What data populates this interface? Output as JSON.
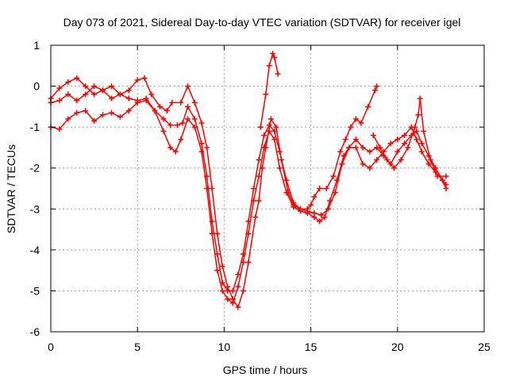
{
  "chart_data": {
    "type": "scatter",
    "title": "Day 073 of 2021, Sidereal Day-to-day VTEC variation (SDTVAR) for receiver igel",
    "xlabel": "GPS time / hours",
    "ylabel": "SDTVAR / TECUs",
    "xlim": [
      0,
      25
    ],
    "ylim": [
      -6,
      1
    ],
    "xticks": [
      "0",
      "5",
      "10",
      "15",
      "20",
      "25"
    ],
    "yticks": [
      "1",
      "0",
      "-1",
      "-2",
      "-3",
      "-4",
      "-5",
      "-6"
    ],
    "grid": true,
    "marker": "plus",
    "color": "#ff0000",
    "series": [
      {
        "name": "track-1",
        "points": [
          [
            0,
            -0.3
          ],
          [
            0.5,
            -0.05
          ],
          [
            1.0,
            0.1
          ],
          [
            1.5,
            0.2
          ],
          [
            2.0,
            0.0
          ],
          [
            2.5,
            -0.2
          ],
          [
            3.0,
            -0.1
          ],
          [
            3.5,
            -0.3
          ],
          [
            4.0,
            -0.2
          ],
          [
            4.5,
            -0.1
          ],
          [
            5.0,
            0.15
          ],
          [
            5.4,
            0.2
          ],
          [
            5.8,
            -0.2
          ],
          [
            6.3,
            -0.5
          ],
          [
            6.7,
            -0.6
          ],
          [
            7.0,
            -0.4
          ],
          [
            7.5,
            -0.4
          ],
          [
            7.9,
            0.0
          ],
          [
            8.3,
            -0.4
          ],
          [
            8.7,
            -0.9
          ],
          [
            9.0,
            -1.5
          ],
          [
            9.3,
            -2.5
          ],
          [
            9.6,
            -3.6
          ],
          [
            9.9,
            -4.4
          ],
          [
            10.2,
            -4.9
          ],
          [
            10.5,
            -5.2
          ],
          [
            10.8,
            -5.4
          ],
          [
            11.1,
            -5.0
          ],
          [
            11.4,
            -4.3
          ],
          [
            11.8,
            -3.2
          ],
          [
            12.0,
            -2.8
          ],
          [
            12.2,
            -2.0
          ],
          [
            12.4,
            -1.5
          ],
          [
            12.7,
            -0.8
          ],
          [
            13.0,
            -1.0
          ],
          [
            13.3,
            -1.8
          ],
          [
            13.7,
            -2.6
          ],
          [
            14.0,
            -2.9
          ],
          [
            14.4,
            -3.0
          ],
          [
            14.8,
            -3.0
          ],
          [
            15.0,
            -2.9
          ],
          [
            15.2,
            -2.7
          ],
          [
            15.5,
            -2.5
          ],
          [
            15.9,
            -2.5
          ],
          [
            16.3,
            -2.2
          ],
          [
            16.7,
            -1.6
          ],
          [
            17.0,
            -1.3
          ],
          [
            17.3,
            -1.0
          ],
          [
            17.6,
            -0.8
          ],
          [
            17.9,
            -0.9
          ],
          [
            18.3,
            -0.5
          ],
          [
            18.7,
            -0.1
          ],
          [
            18.8,
            0.0
          ]
        ]
      },
      {
        "name": "track-2",
        "points": [
          [
            0,
            -0.4
          ],
          [
            0.5,
            -0.35
          ],
          [
            1.0,
            -0.2
          ],
          [
            1.5,
            -0.35
          ],
          [
            2.0,
            -0.2
          ],
          [
            2.5,
            0.0
          ],
          [
            3.0,
            -0.1
          ],
          [
            3.5,
            0.0
          ],
          [
            4.0,
            -0.2
          ],
          [
            4.5,
            -0.3
          ],
          [
            5.0,
            -0.35
          ],
          [
            5.5,
            -0.3
          ],
          [
            6.0,
            -0.6
          ],
          [
            6.5,
            -1.1
          ],
          [
            6.9,
            -1.5
          ],
          [
            7.2,
            -1.6
          ],
          [
            7.5,
            -1.3
          ],
          [
            7.9,
            -0.8
          ],
          [
            8.3,
            -1.0
          ],
          [
            8.7,
            -1.6
          ],
          [
            9.0,
            -2.5
          ],
          [
            9.3,
            -3.6
          ],
          [
            9.6,
            -4.5
          ],
          [
            9.9,
            -5.0
          ],
          [
            10.2,
            -5.2
          ],
          [
            10.5,
            -5.3
          ],
          [
            10.8,
            -4.9
          ],
          [
            11.1,
            -4.3
          ],
          [
            11.4,
            -3.6
          ],
          [
            11.7,
            -2.8
          ],
          [
            12.0,
            -2.2
          ],
          [
            12.3,
            -1.5
          ],
          [
            12.6,
            -1.1
          ],
          [
            12.9,
            -1.3
          ],
          [
            13.2,
            -2.0
          ],
          [
            13.6,
            -2.6
          ],
          [
            14.0,
            -2.95
          ],
          [
            14.4,
            -3.05
          ],
          [
            14.8,
            -3.1
          ],
          [
            15.2,
            -3.2
          ],
          [
            15.5,
            -3.3
          ],
          [
            15.8,
            -3.2
          ],
          [
            16.1,
            -2.8
          ],
          [
            16.5,
            -2.3
          ],
          [
            16.9,
            -1.7
          ],
          [
            17.2,
            -1.5
          ],
          [
            17.6,
            -1.5
          ],
          [
            18.0,
            -1.9
          ],
          [
            18.4,
            -2.0
          ],
          [
            18.8,
            -1.8
          ],
          [
            19.2,
            -1.6
          ],
          [
            19.6,
            -1.4
          ],
          [
            20.0,
            -1.3
          ],
          [
            20.4,
            -1.2
          ],
          [
            20.8,
            -1.0
          ],
          [
            21.1,
            -1.3
          ],
          [
            21.4,
            -1.6
          ],
          [
            21.8,
            -1.9
          ],
          [
            22.2,
            -2.1
          ],
          [
            22.6,
            -2.3
          ],
          [
            22.8,
            -2.4
          ]
        ]
      },
      {
        "name": "track-3",
        "points": [
          [
            0,
            -1.0
          ],
          [
            0.5,
            -1.05
          ],
          [
            1.0,
            -0.8
          ],
          [
            1.5,
            -0.65
          ],
          [
            2.0,
            -0.6
          ],
          [
            2.5,
            -0.85
          ],
          [
            3.0,
            -0.7
          ],
          [
            3.5,
            -0.65
          ],
          [
            4.0,
            -0.75
          ],
          [
            4.5,
            -0.6
          ],
          [
            5.0,
            -0.4
          ],
          [
            5.5,
            -0.35
          ],
          [
            6.0,
            -0.6
          ],
          [
            6.5,
            -0.8
          ],
          [
            6.9,
            -0.95
          ],
          [
            7.3,
            -0.95
          ],
          [
            7.6,
            -0.9
          ],
          [
            7.9,
            -0.5
          ],
          [
            8.3,
            -0.8
          ],
          [
            8.7,
            -1.4
          ],
          [
            9.0,
            -2.2
          ],
          [
            9.3,
            -3.3
          ],
          [
            9.6,
            -4.1
          ],
          [
            9.9,
            -4.8
          ],
          [
            10.2,
            -5.0
          ],
          [
            10.5,
            -5.0
          ],
          [
            10.8,
            -4.6
          ],
          [
            11.1,
            -4.1
          ],
          [
            11.4,
            -3.3
          ],
          [
            11.7,
            -2.5
          ],
          [
            12.0,
            -1.8
          ],
          [
            12.3,
            -1.2
          ],
          [
            12.6,
            -0.95
          ],
          [
            12.9,
            -1.1
          ],
          [
            13.2,
            -1.6
          ],
          [
            13.6,
            -2.3
          ],
          [
            14.0,
            -2.85
          ],
          [
            14.4,
            -3.0
          ],
          [
            14.8,
            -3.05
          ],
          [
            15.2,
            -3.1
          ],
          [
            15.6,
            -3.15
          ],
          [
            16.0,
            -3.0
          ],
          [
            16.4,
            -2.6
          ],
          [
            16.8,
            -1.9
          ],
          [
            17.2,
            -1.5
          ],
          [
            17.6,
            -1.3
          ],
          [
            18.0,
            -1.5
          ],
          [
            18.4,
            -1.6
          ],
          [
            18.8,
            -1.5
          ],
          [
            19.2,
            -1.7
          ],
          [
            19.6,
            -1.9
          ],
          [
            20.0,
            -1.6
          ],
          [
            20.4,
            -1.4
          ],
          [
            20.8,
            -1.2
          ],
          [
            21.1,
            -1.1
          ],
          [
            21.4,
            -1.4
          ],
          [
            21.8,
            -1.7
          ],
          [
            22.2,
            -2.0
          ],
          [
            22.6,
            -2.3
          ],
          [
            22.8,
            -2.5
          ]
        ]
      },
      {
        "name": "track-4",
        "points": [
          [
            18.6,
            -1.2
          ],
          [
            19.0,
            -1.5
          ],
          [
            19.4,
            -1.8
          ],
          [
            19.8,
            -2.0
          ],
          [
            20.2,
            -1.8
          ],
          [
            20.6,
            -1.5
          ],
          [
            21.0,
            -1.0
          ],
          [
            21.2,
            -0.7
          ],
          [
            21.3,
            -0.3
          ],
          [
            21.5,
            -1.1
          ],
          [
            21.9,
            -1.8
          ],
          [
            22.3,
            -2.2
          ],
          [
            22.8,
            -2.2
          ]
        ]
      },
      {
        "name": "track-5",
        "points": [
          [
            12.1,
            -1.0
          ],
          [
            12.4,
            -0.2
          ],
          [
            12.6,
            0.5
          ],
          [
            12.8,
            0.8
          ],
          [
            12.9,
            0.7
          ],
          [
            13.1,
            0.3
          ]
        ]
      }
    ]
  }
}
